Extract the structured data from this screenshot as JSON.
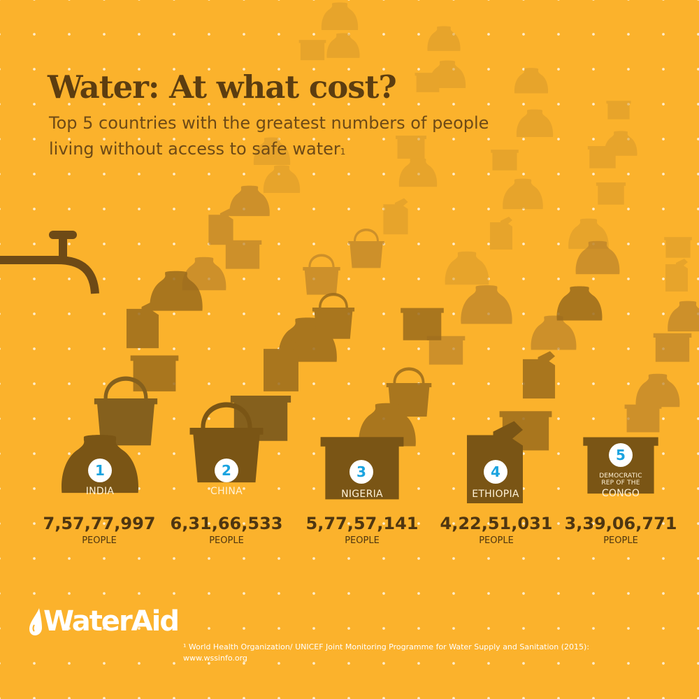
{
  "header": {
    "title": "Water: At what cost?",
    "subtitle_line1": "Top 5 countries with the greatest numbers of people",
    "subtitle_line2": "living without access to safe water",
    "subtitle_footnote_mark": "1"
  },
  "countries": [
    {
      "rank": "1",
      "name": "INDIA",
      "count": "7,57,77,997",
      "unit": "PEOPLE",
      "vessel": "pot-icon"
    },
    {
      "rank": "2",
      "name": "CHINA",
      "count": "6,31,66,533",
      "unit": "PEOPLE",
      "vessel": "bucket-icon"
    },
    {
      "rank": "3",
      "name": "NIGERIA",
      "count": "5,77,57,141",
      "unit": "PEOPLE",
      "vessel": "bucket-icon"
    },
    {
      "rank": "4",
      "name": "ETHIOPIA",
      "count": "4,22,51,031",
      "unit": "PEOPLE",
      "vessel": "jerrycan-icon"
    },
    {
      "rank": "5",
      "name_line1": "DEMOCRATIC",
      "name_line2": "REP OF THE",
      "name_line3": "CONGO",
      "count": "3,39,06,771",
      "unit": "PEOPLE",
      "vessel": "tub-icon"
    }
  ],
  "logo": {
    "text": "WaterAid"
  },
  "footnote": {
    "line1": "¹ World Health Organization/ UNICEF Joint Monitoring Programme for Water Supply and Sanitation (2015):",
    "line2": "www.wssinfo.org"
  },
  "colors": {
    "background": "#fbb22c",
    "vessel_dark": "#7a5515",
    "text_dark": "#4f3610",
    "badge_number": "#1aa3e0"
  },
  "icons": [
    "tap-icon",
    "pot-icon",
    "bucket-icon",
    "jerrycan-icon",
    "tub-icon",
    "water-drop-icon"
  ]
}
